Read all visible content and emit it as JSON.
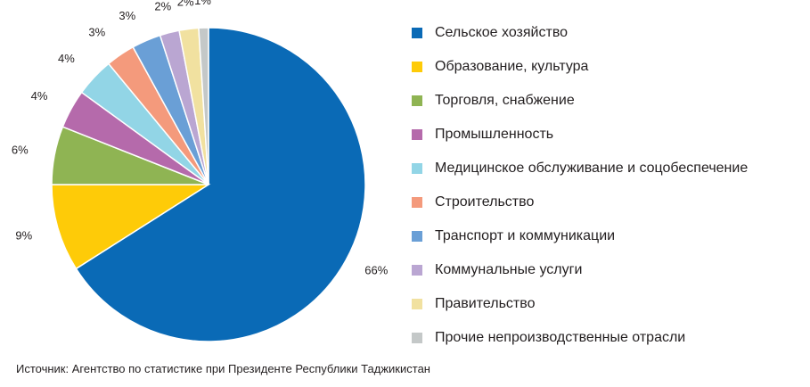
{
  "chart_data": {
    "type": "pie",
    "categories": [
      "Сельское хозяйство",
      "Образование, культура",
      "Торговля, снабжение",
      "Промышленность",
      "Медицинское обслуживание и соцобеспечение",
      "Строительство",
      "Транспорт и коммуникации",
      "Коммунальные услуги",
      "Правительство",
      "Прочие непроизводственные отрасли"
    ],
    "values": [
      66,
      9,
      6,
      4,
      4,
      3,
      3,
      2,
      2,
      1
    ],
    "labels": [
      "66%",
      "9%",
      "6%",
      "4%",
      "4%",
      "3%",
      "3%",
      "2%",
      "2%",
      "1%"
    ],
    "colors": [
      "#0a6ab6",
      "#fecb08",
      "#8fb453",
      "#b56aab",
      "#92d5e6",
      "#f49a7c",
      "#6a9fd6",
      "#baa6d2",
      "#f1e1a0",
      "#c4c8c8"
    ],
    "start_angle_deg": 0,
    "direction": "clockwise",
    "legend_position": "right"
  },
  "source_text": "Источник: Агентство по статистике при Президенте Республики Таджикистан"
}
